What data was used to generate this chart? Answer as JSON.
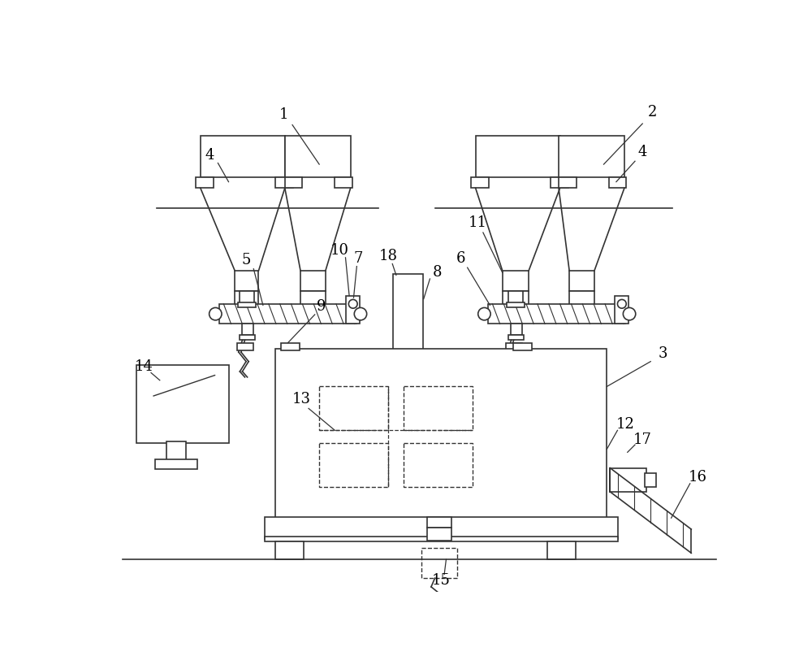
{
  "bg_color": "#ffffff",
  "lc": "#333333",
  "lw": 1.2,
  "fs": 13,
  "fig_w": 10.0,
  "fig_h": 8.18
}
